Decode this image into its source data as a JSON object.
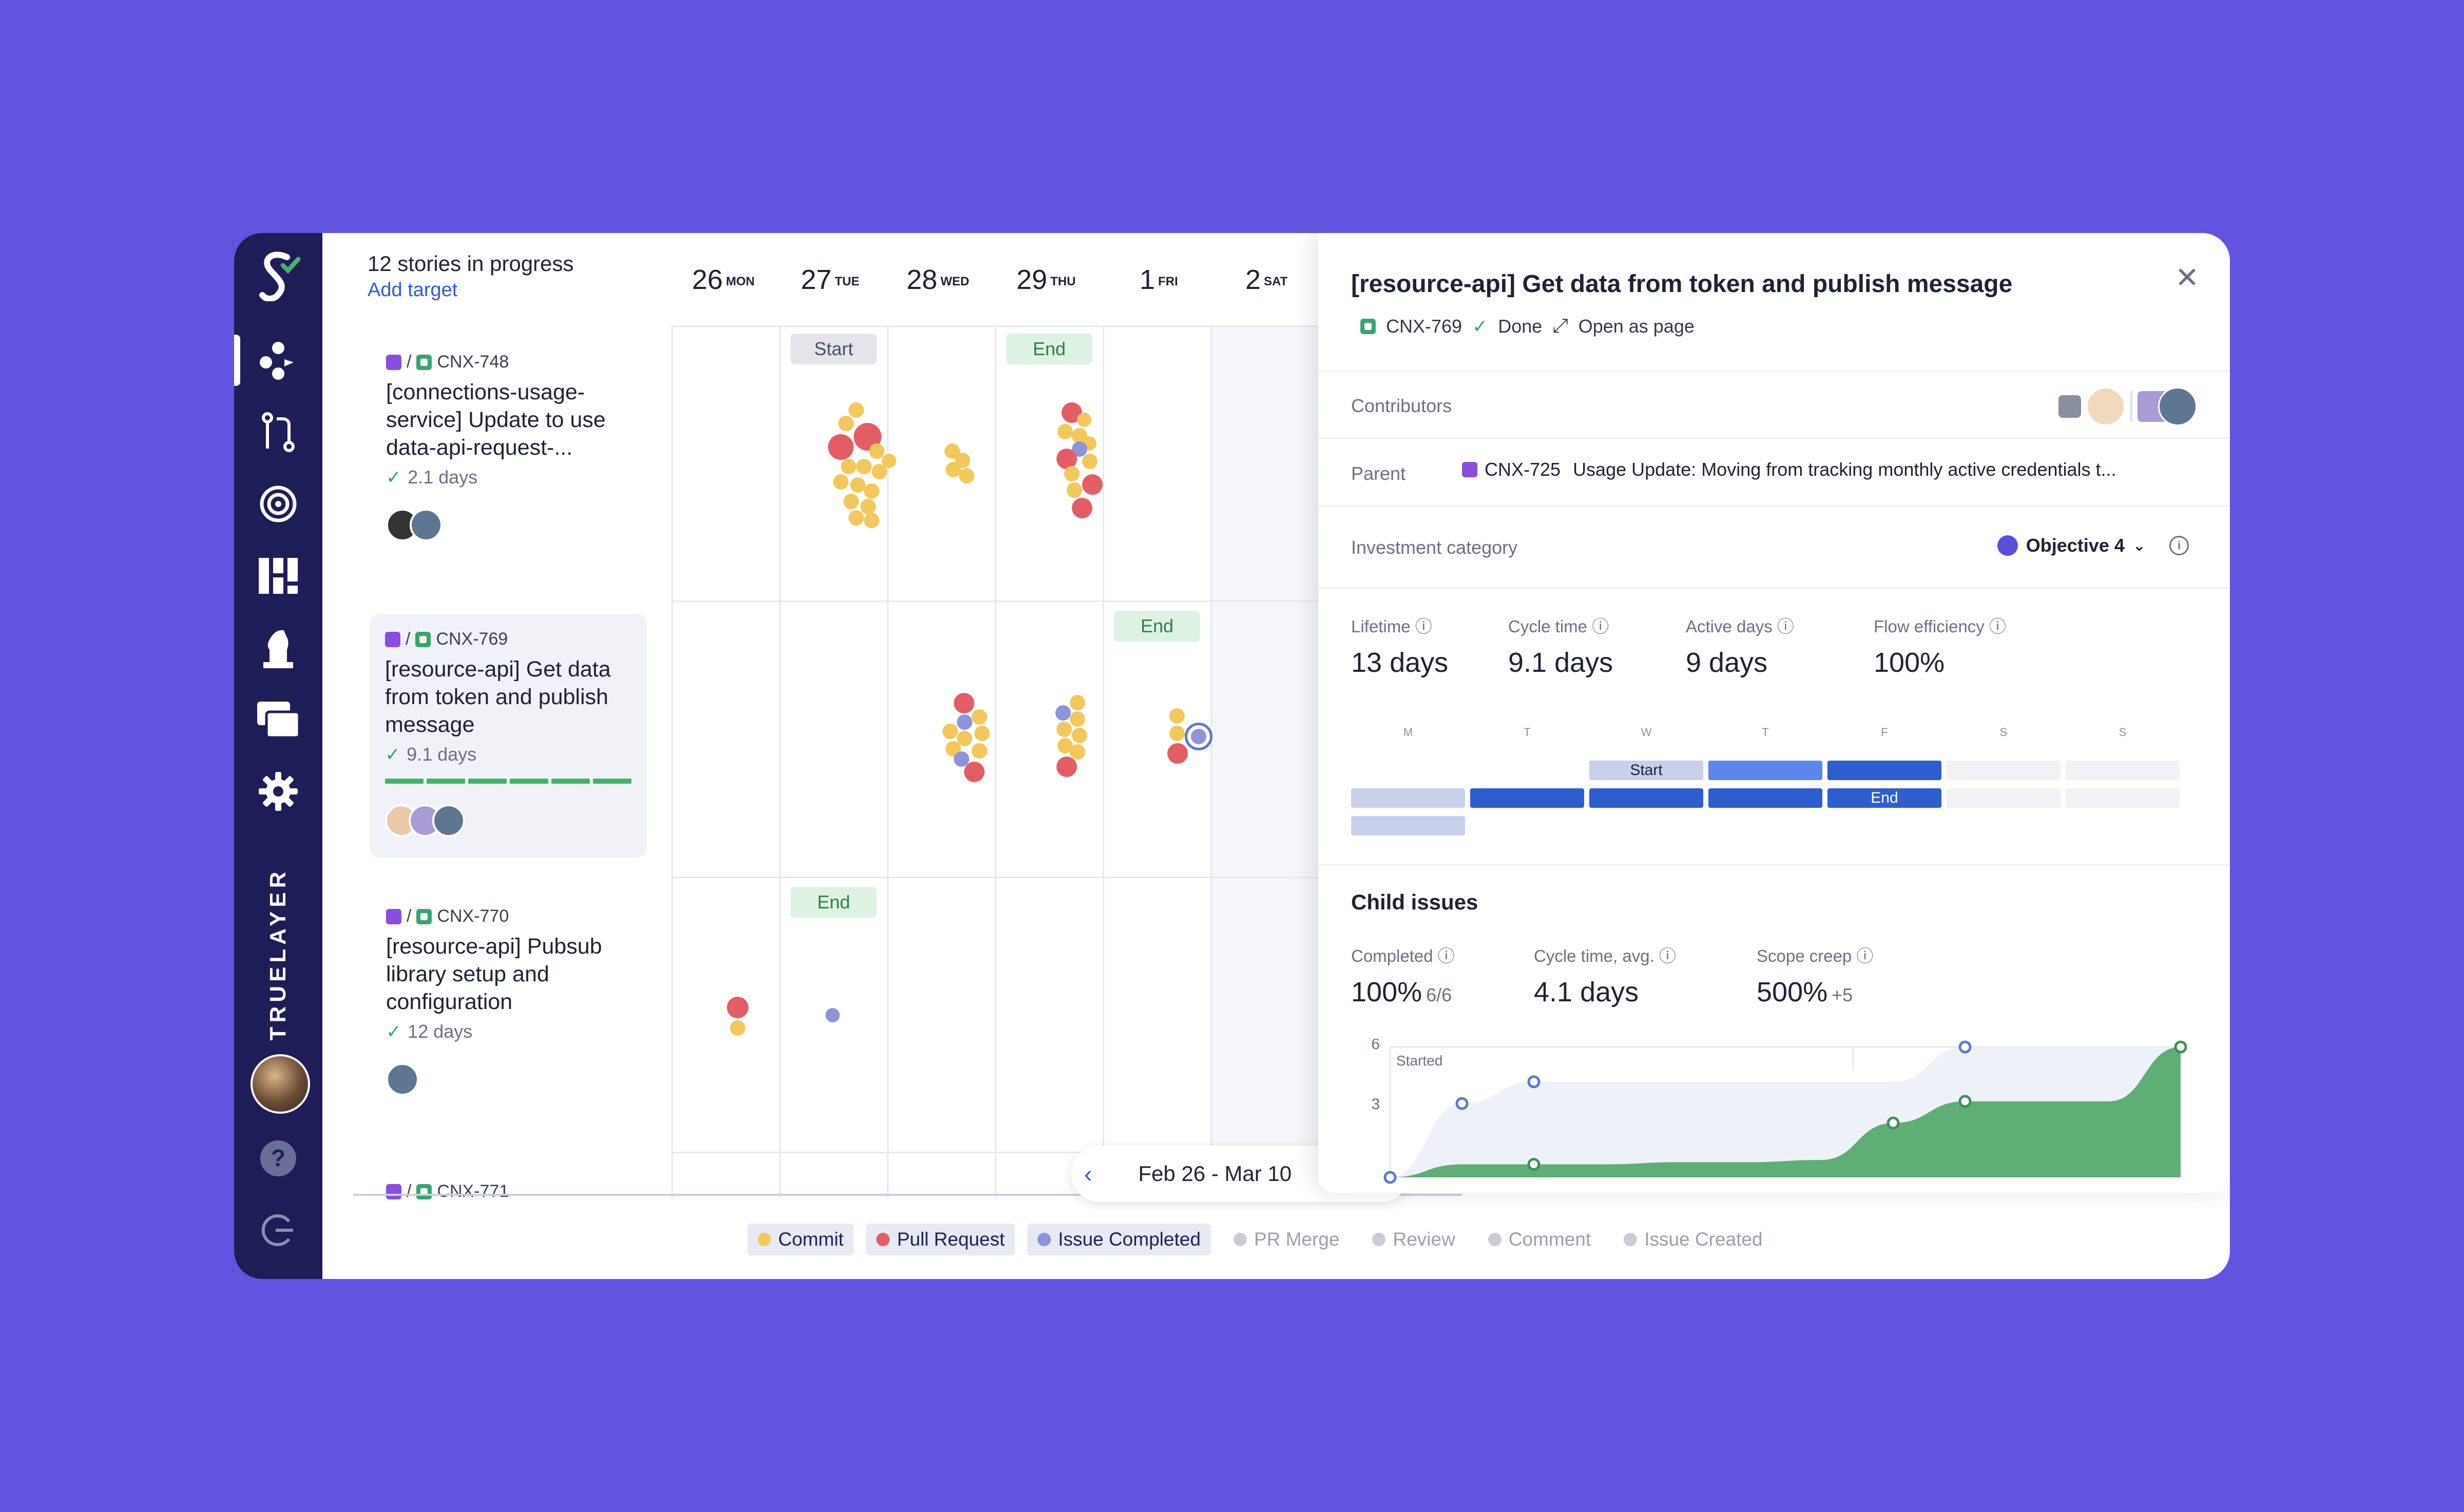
{
  "sidebar": {
    "brand": "TRUELAYER",
    "icons": [
      "logo-icon",
      "teams-icon",
      "pull-requests-icon",
      "target-icon",
      "dashboard-icon",
      "chess-knight-icon",
      "stack-icon",
      "gear-icon",
      "help-icon",
      "logout-icon"
    ]
  },
  "list": {
    "heading": "12 stories in progress",
    "add_target": "Add target",
    "stories": [
      {
        "key": "CNX-748",
        "title": "[connections-usage-service] Update to use data-api-request-...",
        "days": "2.1 days"
      },
      {
        "key": "CNX-769",
        "title": "[resource-api] Get data from token and publish message",
        "days": "9.1 days"
      },
      {
        "key": "CNX-770",
        "title": "[resource-api] Pubsub library setup and configuration",
        "days": "12 days"
      },
      {
        "key": "CNX-771"
      }
    ]
  },
  "calendar": {
    "days": [
      {
        "num": "26",
        "dow": "MON"
      },
      {
        "num": "27",
        "dow": "TUE"
      },
      {
        "num": "28",
        "dow": "WED"
      },
      {
        "num": "29",
        "dow": "THU"
      },
      {
        "num": "1",
        "dow": "FRI"
      },
      {
        "num": "2",
        "dow": "SAT"
      }
    ],
    "start_label": "Start",
    "end_label": "End",
    "date_range": "Feb 26 - Mar 10",
    "legend": [
      {
        "label": "Commit",
        "color": "#F2C75C",
        "on": true
      },
      {
        "label": "Pull Request",
        "color": "#E35D66",
        "on": true
      },
      {
        "label": "Issue Completed",
        "color": "#8E93DA",
        "on": true
      },
      {
        "label": "PR Merge",
        "color": "#C9CCD4",
        "on": false
      },
      {
        "label": "Review",
        "color": "#C9CCD4",
        "on": false
      },
      {
        "label": "Comment",
        "color": "#C9CCD4",
        "on": false
      },
      {
        "label": "Issue Created",
        "color": "#C9CCD4",
        "on": false
      }
    ]
  },
  "panel": {
    "title": "[resource-api] Get data from token and publish message",
    "key": "CNX-769",
    "status": "Done",
    "open_as_page": "Open as page",
    "contributors_label": "Contributors",
    "parent_label": "Parent",
    "parent_key": "CNX-725",
    "parent_title": "Usage Update: Moving from tracking monthly active credentials t...",
    "investment_label": "Investment category",
    "objective": "Objective 4",
    "stats": [
      {
        "label": "Lifetime",
        "value": "13 days"
      },
      {
        "label": "Cycle time",
        "value": "9.1 days"
      },
      {
        "label": "Active days",
        "value": "9 days"
      },
      {
        "label": "Flow efficiency",
        "value": "100%"
      }
    ],
    "week_days": [
      "M",
      "T",
      "W",
      "T",
      "F",
      "S",
      "S"
    ],
    "start_label": "Start",
    "end_label": "End",
    "child_issues": {
      "title": "Child issues",
      "stats": [
        {
          "label": "Completed",
          "value": "100%",
          "sub": "6/6"
        },
        {
          "label": "Cycle time, avg.",
          "value": "4.1 days",
          "sub": ""
        },
        {
          "label": "Scope creep",
          "value": "500%",
          "sub": "+5"
        }
      ],
      "chart_data": {
        "type": "area",
        "y_ticks": [
          "6",
          "3"
        ],
        "ylim": [
          0,
          6
        ],
        "annotation": "Started",
        "series": [
          {
            "values": [
              0,
              0.6,
              0.6,
              0.6,
              0.7,
              0.7,
              0.8,
              2.5,
              3.5,
              3.5,
              3.5,
              6
            ],
            "color": "#5FAE76"
          },
          {
            "values": [
              0,
              3.4,
              4.4,
              4.4,
              4.4,
              4.4,
              4.4,
              4.4,
              6,
              6,
              6,
              6
            ],
            "color": "#EEF1F7"
          }
        ]
      }
    }
  }
}
